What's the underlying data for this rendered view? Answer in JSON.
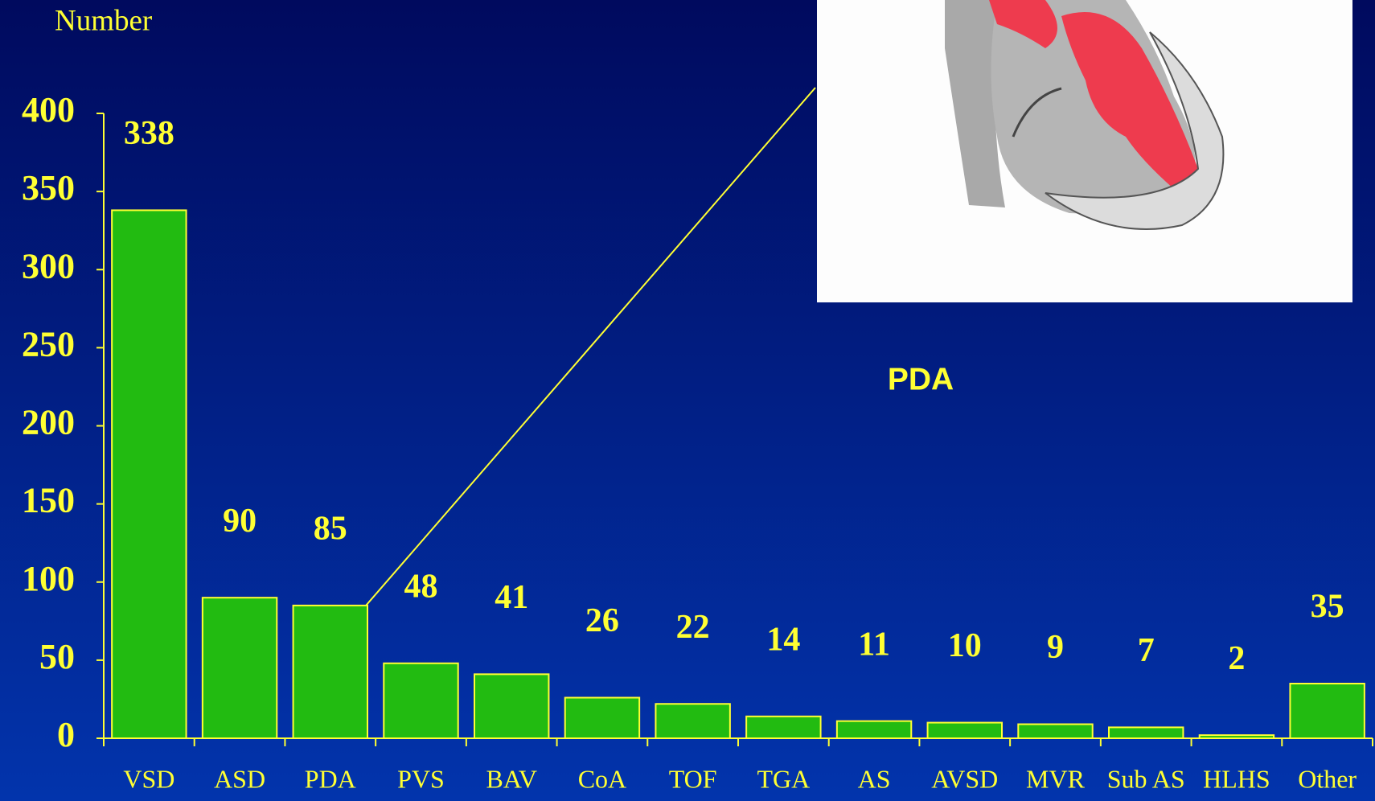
{
  "chart_data": {
    "type": "bar",
    "y_label": "Number",
    "annotation": "PDA",
    "categories": [
      "VSD",
      "ASD",
      "PDA",
      "PVS",
      "BAV",
      "CoA",
      "TOF",
      "TGA",
      "AS",
      "AVSD",
      "MVR",
      "Sub AS",
      "HLHS",
      "Other"
    ],
    "values": [
      338,
      90,
      85,
      48,
      41,
      26,
      22,
      14,
      11,
      10,
      9,
      7,
      2,
      35
    ],
    "color": "#22bb11",
    "ylim": [
      0,
      400
    ],
    "yticks": [
      0,
      50,
      100,
      150,
      200,
      250,
      300,
      350,
      400
    ],
    "grid": false
  }
}
